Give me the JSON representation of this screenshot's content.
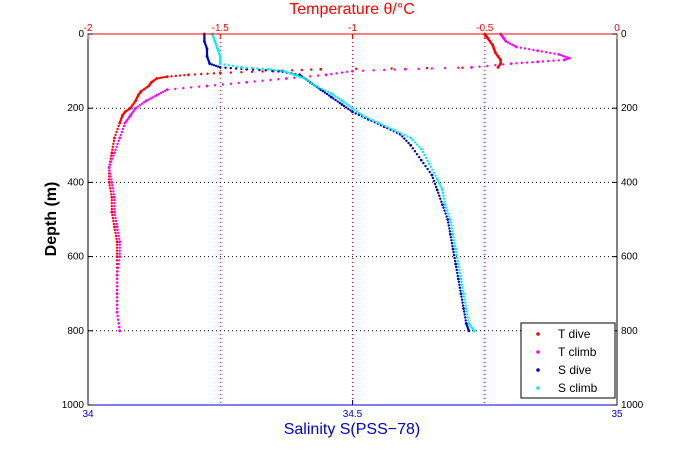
{
  "chart_data": {
    "type": "scatter",
    "top_axis": {
      "label": "Temperature θ/°C",
      "range": [
        -2,
        0
      ],
      "ticks": [
        "-2",
        "-1.5",
        "-1",
        "-0.5",
        "0"
      ],
      "color": "#ff0000"
    },
    "bottom_axis": {
      "label": "Salinity S(PSS−78)",
      "range": [
        34,
        35
      ],
      "ticks": [
        "34",
        "34.5",
        "35"
      ],
      "color": "#0000cc"
    },
    "y_axis": {
      "label": "Depth (m)",
      "range": [
        0,
        1000
      ],
      "reversed": true,
      "ticks": [
        "0",
        "200",
        "400",
        "600",
        "800",
        "1000"
      ]
    },
    "grid": true,
    "legend_position": "bottom-right",
    "series": [
      {
        "name": "T dive",
        "axis": "top",
        "color": "#ff0000",
        "points": [
          [
            -0.5,
            0
          ],
          [
            -0.49,
            10
          ],
          [
            -0.48,
            20
          ],
          [
            -0.47,
            30
          ],
          [
            -0.465,
            40
          ],
          [
            -0.46,
            50
          ],
          [
            -0.45,
            60
          ],
          [
            -0.44,
            70
          ],
          [
            -0.44,
            80
          ],
          [
            -0.45,
            90
          ],
          [
            -1.12,
            95
          ],
          [
            -1.3,
            100
          ],
          [
            -1.5,
            105
          ],
          [
            -1.62,
            110
          ],
          [
            -1.7,
            115
          ],
          [
            -1.74,
            120
          ],
          [
            -1.76,
            130
          ],
          [
            -1.77,
            140
          ],
          [
            -1.8,
            155
          ],
          [
            -1.81,
            165
          ],
          [
            -1.82,
            180
          ],
          [
            -1.84,
            200
          ],
          [
            -1.86,
            210
          ],
          [
            -1.87,
            220
          ],
          [
            -1.88,
            240
          ],
          [
            -1.9,
            280
          ],
          [
            -1.91,
            320
          ],
          [
            -1.92,
            360
          ],
          [
            -1.92,
            400
          ],
          [
            -1.91,
            440
          ],
          [
            -1.91,
            480
          ],
          [
            -1.9,
            520
          ],
          [
            -1.89,
            560
          ],
          [
            -1.89,
            600
          ],
          [
            -1.89,
            650
          ],
          [
            -1.89,
            700
          ],
          [
            -1.89,
            750
          ],
          [
            -1.88,
            800
          ]
        ]
      },
      {
        "name": "T climb",
        "axis": "top",
        "color": "#ff00ff",
        "points": [
          [
            -1.88,
            800
          ],
          [
            -1.89,
            750
          ],
          [
            -1.89,
            700
          ],
          [
            -1.89,
            650
          ],
          [
            -1.88,
            600
          ],
          [
            -1.88,
            560
          ],
          [
            -1.89,
            520
          ],
          [
            -1.9,
            480
          ],
          [
            -1.9,
            440
          ],
          [
            -1.91,
            400
          ],
          [
            -1.92,
            360
          ],
          [
            -1.9,
            320
          ],
          [
            -1.88,
            280
          ],
          [
            -1.86,
            240
          ],
          [
            -1.84,
            220
          ],
          [
            -1.82,
            200
          ],
          [
            -1.78,
            180
          ],
          [
            -1.74,
            165
          ],
          [
            -1.7,
            150
          ],
          [
            -1.55,
            140
          ],
          [
            -1.4,
            130
          ],
          [
            -1.25,
            120
          ],
          [
            -1.1,
            110
          ],
          [
            -1.0,
            100
          ],
          [
            -0.8,
            95
          ],
          [
            -0.55,
            90
          ],
          [
            -0.4,
            80
          ],
          [
            -0.3,
            75
          ],
          [
            -0.2,
            70
          ],
          [
            -0.18,
            65
          ],
          [
            -0.22,
            55
          ],
          [
            -0.3,
            45
          ],
          [
            -0.38,
            35
          ],
          [
            -0.42,
            20
          ],
          [
            -0.43,
            10
          ],
          [
            -0.44,
            0
          ]
        ]
      },
      {
        "name": "S dive",
        "axis": "bottom",
        "color": "#0000cc",
        "points": [
          [
            34.22,
            0
          ],
          [
            34.22,
            20
          ],
          [
            34.225,
            40
          ],
          [
            34.225,
            60
          ],
          [
            34.23,
            80
          ],
          [
            34.25,
            90
          ],
          [
            34.3,
            95
          ],
          [
            34.36,
            100
          ],
          [
            34.4,
            110
          ],
          [
            34.42,
            130
          ],
          [
            34.44,
            150
          ],
          [
            34.46,
            170
          ],
          [
            34.48,
            190
          ],
          [
            34.5,
            210
          ],
          [
            34.53,
            230
          ],
          [
            34.56,
            250
          ],
          [
            34.59,
            270
          ],
          [
            34.61,
            300
          ],
          [
            34.63,
            340
          ],
          [
            34.65,
            380
          ],
          [
            34.66,
            420
          ],
          [
            34.67,
            460
          ],
          [
            34.68,
            500
          ],
          [
            34.685,
            540
          ],
          [
            34.69,
            580
          ],
          [
            34.695,
            620
          ],
          [
            34.7,
            660
          ],
          [
            34.705,
            700
          ],
          [
            34.71,
            740
          ],
          [
            34.715,
            780
          ],
          [
            34.72,
            800
          ]
        ]
      },
      {
        "name": "S climb",
        "axis": "bottom",
        "color": "#00eeee",
        "points": [
          [
            34.73,
            800
          ],
          [
            34.72,
            780
          ],
          [
            34.715,
            740
          ],
          [
            34.71,
            700
          ],
          [
            34.705,
            660
          ],
          [
            34.7,
            620
          ],
          [
            34.695,
            580
          ],
          [
            34.69,
            540
          ],
          [
            34.685,
            500
          ],
          [
            34.675,
            460
          ],
          [
            34.67,
            420
          ],
          [
            34.66,
            390
          ],
          [
            34.645,
            350
          ],
          [
            34.63,
            310
          ],
          [
            34.61,
            280
          ],
          [
            34.58,
            260
          ],
          [
            34.55,
            240
          ],
          [
            34.52,
            220
          ],
          [
            34.5,
            200
          ],
          [
            34.48,
            180
          ],
          [
            34.46,
            160
          ],
          [
            34.43,
            140
          ],
          [
            34.41,
            120
          ],
          [
            34.39,
            110
          ],
          [
            34.37,
            100
          ],
          [
            34.34,
            95
          ],
          [
            34.29,
            90
          ],
          [
            34.25,
            80
          ],
          [
            34.25,
            60
          ],
          [
            34.245,
            40
          ],
          [
            34.24,
            20
          ],
          [
            34.235,
            0
          ]
        ]
      }
    ]
  }
}
